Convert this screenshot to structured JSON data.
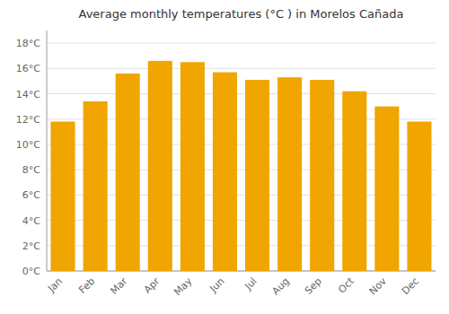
{
  "chart_data": {
    "type": "bar",
    "title": "Average monthly temperatures (°C ) in Morelos Cañada",
    "categories": [
      "Jan",
      "Feb",
      "Mar",
      "Apr",
      "May",
      "Jun",
      "Jul",
      "Aug",
      "Sep",
      "Oct",
      "Nov",
      "Dec"
    ],
    "values": [
      11.8,
      13.4,
      15.6,
      16.6,
      16.5,
      15.7,
      15.1,
      15.3,
      15.1,
      14.2,
      13.0,
      11.8
    ],
    "color": "#F0A500",
    "ylim": [
      0,
      19
    ],
    "yticks": [
      {
        "value": 0,
        "label": "0°C"
      },
      {
        "value": 2,
        "label": "2°C"
      },
      {
        "value": 4,
        "label": "4°C"
      },
      {
        "value": 6,
        "label": "6°C"
      },
      {
        "value": 8,
        "label": "8°C"
      },
      {
        "value": 10,
        "label": "10°C"
      },
      {
        "value": 12,
        "label": "12°C"
      },
      {
        "value": 14,
        "label": "14°C"
      },
      {
        "value": 16,
        "label": "16°C"
      },
      {
        "value": 18,
        "label": "18°C"
      }
    ],
    "grid": true
  }
}
